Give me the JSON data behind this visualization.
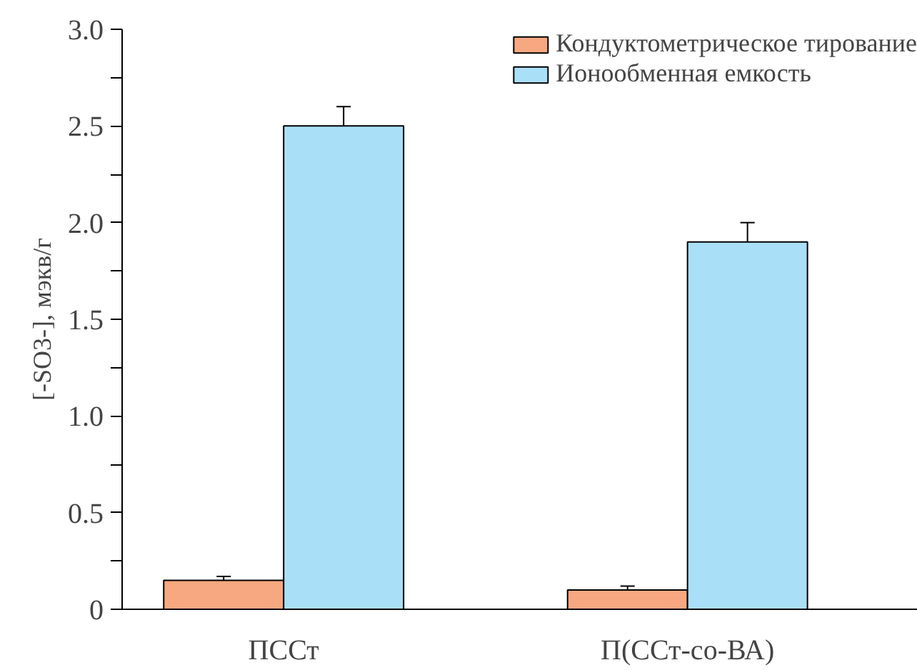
{
  "chart_data": {
    "type": "bar",
    "ylabel": "[-SO3-], мэкв/г",
    "categories": [
      "ПССт",
      "П(ССт-со-ВА)"
    ],
    "series": [
      {
        "name": "Кондуктометрическое тирование",
        "color": "#f7a880",
        "values": [
          0.15,
          0.1
        ],
        "errors": [
          0.02,
          0.02
        ]
      },
      {
        "name": "Ионообменная емкость",
        "color": "#aadff8",
        "values": [
          2.5,
          1.9
        ],
        "errors": [
          0.1,
          0.1
        ]
      }
    ],
    "ylim": [
      0,
      3.0
    ],
    "yticks": [
      0,
      {
        "value": 0.25,
        "label": null
      },
      {
        "value": 0.5,
        "label": "0.5"
      },
      {
        "value": 0.75,
        "label": null
      },
      {
        "value": 1,
        "label": "1.0"
      },
      {
        "value": 1.25,
        "label": null
      },
      {
        "value": 1.5,
        "label": "1.5"
      },
      {
        "value": 1.75,
        "label": null
      },
      {
        "value": 2,
        "label": "2.0"
      },
      {
        "value": 2.25,
        "label": null
      },
      {
        "value": 2.5,
        "label": "2.5"
      },
      {
        "value": 2.75,
        "label": null
      },
      {
        "value": 3,
        "label": "3.0"
      }
    ],
    "grid": false,
    "legend": "top right"
  }
}
